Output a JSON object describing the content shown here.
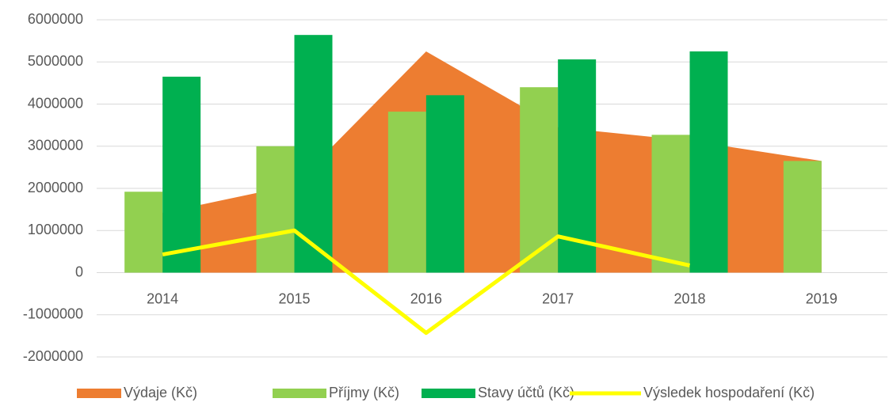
{
  "chart_data": {
    "type": "combo",
    "categories": [
      "2014",
      "2015",
      "2016",
      "2017",
      "2018",
      "2019"
    ],
    "series": [
      {
        "name": "Výdaje (Kč)",
        "kind": "area",
        "color": "#ed7d31",
        "values": [
          1420000,
          2080000,
          5250000,
          3450000,
          3130000,
          2650000
        ]
      },
      {
        "name": "Příjmy (Kč)",
        "kind": "bar",
        "color": "#92d050",
        "values": [
          1920000,
          3000000,
          3820000,
          4400000,
          3270000,
          2650000
        ]
      },
      {
        "name": "Stavy účtů (Kč)",
        "kind": "bar",
        "color": "#00b050",
        "values": [
          4650000,
          5640000,
          4210000,
          5060000,
          5250000,
          null
        ]
      },
      {
        "name": "Výsledek hospodaření (Kč)",
        "kind": "line",
        "color": "#ffff00",
        "values": [
          430000,
          1000000,
          -1430000,
          860000,
          170000,
          null
        ]
      }
    ],
    "ylim": [
      -2000000,
      6000000
    ],
    "yticks": [
      -2000000,
      -1000000,
      0,
      1000000,
      2000000,
      3000000,
      4000000,
      5000000,
      6000000
    ],
    "grid": true,
    "legend": "bottom"
  }
}
